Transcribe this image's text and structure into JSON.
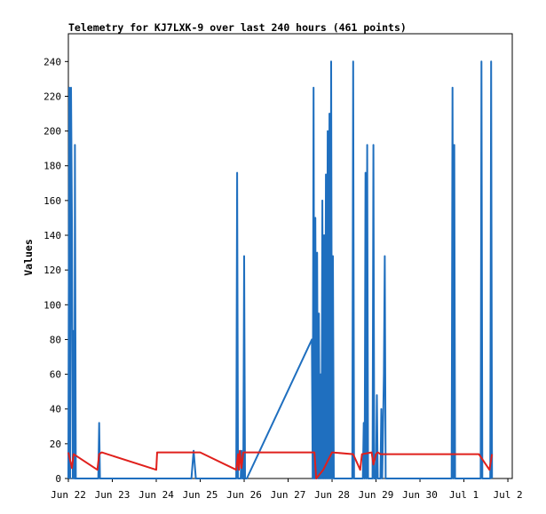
{
  "chart_data": {
    "type": "line",
    "title": "Telemetry for KJ7LXK-9 over last 240 hours (461 points)",
    "xlabel": "",
    "ylabel": "Values",
    "ylim": [
      0,
      256
    ],
    "xlim": [
      0,
      10.1
    ],
    "yticks": [
      0,
      20,
      40,
      60,
      80,
      100,
      120,
      140,
      160,
      180,
      200,
      220,
      240
    ],
    "xticks": [
      {
        "x": 0,
        "label": "Jun 22"
      },
      {
        "x": 1,
        "label": "Jun 23"
      },
      {
        "x": 2,
        "label": "Jun 24"
      },
      {
        "x": 3,
        "label": "Jun 25"
      },
      {
        "x": 4,
        "label": "Jun 26"
      },
      {
        "x": 5,
        "label": "Jun 27"
      },
      {
        "x": 6,
        "label": "Jun 28"
      },
      {
        "x": 7,
        "label": "Jun 29"
      },
      {
        "x": 8,
        "label": "Jun 30"
      },
      {
        "x": 9,
        "label": "Jul 1"
      },
      {
        "x": 10,
        "label": "Jul 2"
      }
    ],
    "grid": false,
    "legend": "none",
    "series": [
      {
        "color": "#1f6fbf",
        "points": [
          [
            0.0,
            0
          ],
          [
            0.02,
            225
          ],
          [
            0.04,
            0
          ],
          [
            0.06,
            225
          ],
          [
            0.08,
            150
          ],
          [
            0.1,
            0
          ],
          [
            0.12,
            85
          ],
          [
            0.14,
            0
          ],
          [
            0.15,
            192
          ],
          [
            0.17,
            0
          ],
          [
            0.68,
            0
          ],
          [
            0.7,
            32
          ],
          [
            0.72,
            0
          ],
          [
            2.8,
            0
          ],
          [
            2.85,
            16
          ],
          [
            2.9,
            0
          ],
          [
            3.82,
            0
          ],
          [
            3.84,
            176
          ],
          [
            3.86,
            0
          ],
          [
            3.92,
            0
          ],
          [
            3.94,
            16
          ],
          [
            3.96,
            0
          ],
          [
            3.98,
            0
          ],
          [
            4.0,
            128
          ],
          [
            4.02,
            0
          ],
          [
            4.06,
            0
          ],
          [
            5.54,
            80
          ],
          [
            5.56,
            0
          ],
          [
            5.58,
            225
          ],
          [
            5.6,
            0
          ],
          [
            5.62,
            150
          ],
          [
            5.64,
            0
          ],
          [
            5.66,
            130
          ],
          [
            5.68,
            0
          ],
          [
            5.7,
            95
          ],
          [
            5.72,
            0
          ],
          [
            5.74,
            60
          ],
          [
            5.76,
            0
          ],
          [
            5.78,
            160
          ],
          [
            5.8,
            0
          ],
          [
            5.82,
            140
          ],
          [
            5.84,
            0
          ],
          [
            5.86,
            175
          ],
          [
            5.88,
            0
          ],
          [
            5.9,
            200
          ],
          [
            5.92,
            0
          ],
          [
            5.94,
            210
          ],
          [
            5.96,
            0
          ],
          [
            5.98,
            240
          ],
          [
            6.0,
            0
          ],
          [
            6.02,
            128
          ],
          [
            6.04,
            0
          ],
          [
            6.46,
            0
          ],
          [
            6.48,
            240
          ],
          [
            6.5,
            0
          ],
          [
            6.7,
            0
          ],
          [
            6.72,
            32
          ],
          [
            6.74,
            0
          ],
          [
            6.76,
            176
          ],
          [
            6.78,
            0
          ],
          [
            6.8,
            192
          ],
          [
            6.82,
            0
          ],
          [
            6.92,
            0
          ],
          [
            6.94,
            192
          ],
          [
            6.96,
            0
          ],
          [
            7.0,
            0
          ],
          [
            7.02,
            48
          ],
          [
            7.04,
            0
          ],
          [
            7.1,
            0
          ],
          [
            7.12,
            40
          ],
          [
            7.14,
            0
          ],
          [
            7.18,
            60
          ],
          [
            7.2,
            128
          ],
          [
            7.22,
            0
          ],
          [
            8.72,
            0
          ],
          [
            8.74,
            225
          ],
          [
            8.76,
            0
          ],
          [
            8.78,
            192
          ],
          [
            8.8,
            0
          ],
          [
            9.38,
            0
          ],
          [
            9.4,
            240
          ],
          [
            9.42,
            0
          ],
          [
            9.6,
            0
          ],
          [
            9.62,
            240
          ],
          [
            9.64,
            0
          ]
        ]
      },
      {
        "color": "#e0201c",
        "points": [
          [
            0.0,
            15
          ],
          [
            0.08,
            6
          ],
          [
            0.12,
            14
          ],
          [
            0.66,
            5
          ],
          [
            0.7,
            14
          ],
          [
            0.76,
            15
          ],
          [
            2.0,
            5
          ],
          [
            2.02,
            15
          ],
          [
            3.0,
            15
          ],
          [
            3.82,
            5
          ],
          [
            3.86,
            14
          ],
          [
            3.88,
            5
          ],
          [
            3.9,
            16
          ],
          [
            3.94,
            6
          ],
          [
            3.98,
            15
          ],
          [
            5.6,
            15
          ],
          [
            5.64,
            0
          ],
          [
            5.8,
            5
          ],
          [
            6.0,
            15
          ],
          [
            6.48,
            14
          ],
          [
            6.64,
            5
          ],
          [
            6.68,
            14
          ],
          [
            6.9,
            15
          ],
          [
            6.94,
            8
          ],
          [
            7.0,
            14
          ],
          [
            7.04,
            15
          ],
          [
            7.1,
            14
          ],
          [
            9.34,
            14
          ],
          [
            9.58,
            5
          ],
          [
            9.64,
            14
          ]
        ]
      }
    ]
  }
}
